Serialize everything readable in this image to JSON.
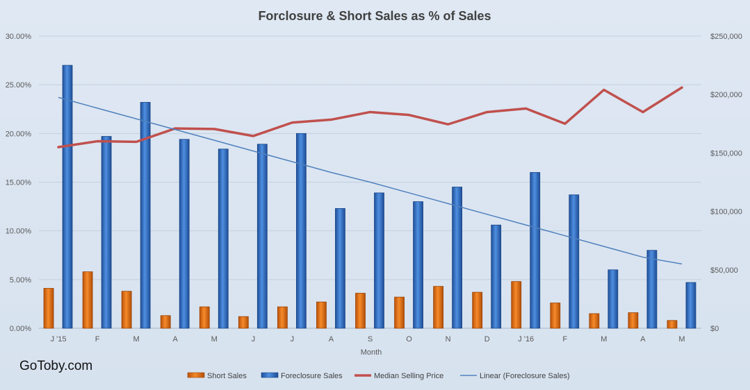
{
  "watermark": "GoToby.com",
  "chart_data": {
    "type": "bar",
    "title": "Forclosure & Short Sales as % of Sales",
    "xlabel": "Month",
    "ylabel": "",
    "y2label": "",
    "categories": [
      "J '15",
      "F",
      "M",
      "A",
      "M",
      "J",
      "J",
      "A",
      "S",
      "O",
      "N",
      "D",
      "J '16",
      "F",
      "M",
      "A",
      "M"
    ],
    "ylim": [
      0,
      30
    ],
    "y2lim": [
      0,
      250000
    ],
    "y_ticks": [
      "0.00%",
      "5.00%",
      "10.00%",
      "15.00%",
      "20.00%",
      "25.00%",
      "30.00%"
    ],
    "y2_ticks": [
      "$0",
      "$50,000",
      "$100,000",
      "$150,000",
      "$200,000",
      "$250,000"
    ],
    "grid": true,
    "legend_position": "bottom",
    "series": [
      {
        "name": "Short Sales",
        "type": "bar",
        "axis": "left",
        "color": "#e46c0a",
        "values": [
          4.1,
          5.8,
          3.8,
          1.3,
          2.2,
          1.2,
          2.2,
          2.7,
          3.6,
          3.2,
          4.3,
          3.7,
          4.8,
          2.6,
          1.5,
          1.6,
          0.8
        ]
      },
      {
        "name": "Foreclosure Sales",
        "type": "bar",
        "axis": "left",
        "color": "#2e75c9",
        "values": [
          27.0,
          19.7,
          23.2,
          19.4,
          18.4,
          18.9,
          20.0,
          12.3,
          13.9,
          13.0,
          14.5,
          10.6,
          16.0,
          13.7,
          6.0,
          8.0,
          4.7
        ]
      },
      {
        "name": "Median Selling Price",
        "type": "line",
        "axis": "right",
        "color": "#c0504d",
        "values": [
          155000,
          160000,
          159500,
          171000,
          170500,
          164500,
          176000,
          178500,
          185000,
          182500,
          174500,
          185000,
          188000,
          175000,
          204000,
          185000,
          206000
        ]
      },
      {
        "name": "Linear (Foreclosure Sales)",
        "type": "trendline",
        "axis": "left",
        "color": "#4f81bd",
        "values": [
          23.7,
          22.6,
          21.5,
          20.4,
          19.3,
          18.2,
          17.1,
          16.0,
          15.0,
          13.9,
          12.8,
          11.7,
          10.6,
          9.5,
          8.4,
          7.3,
          6.6
        ]
      }
    ]
  }
}
